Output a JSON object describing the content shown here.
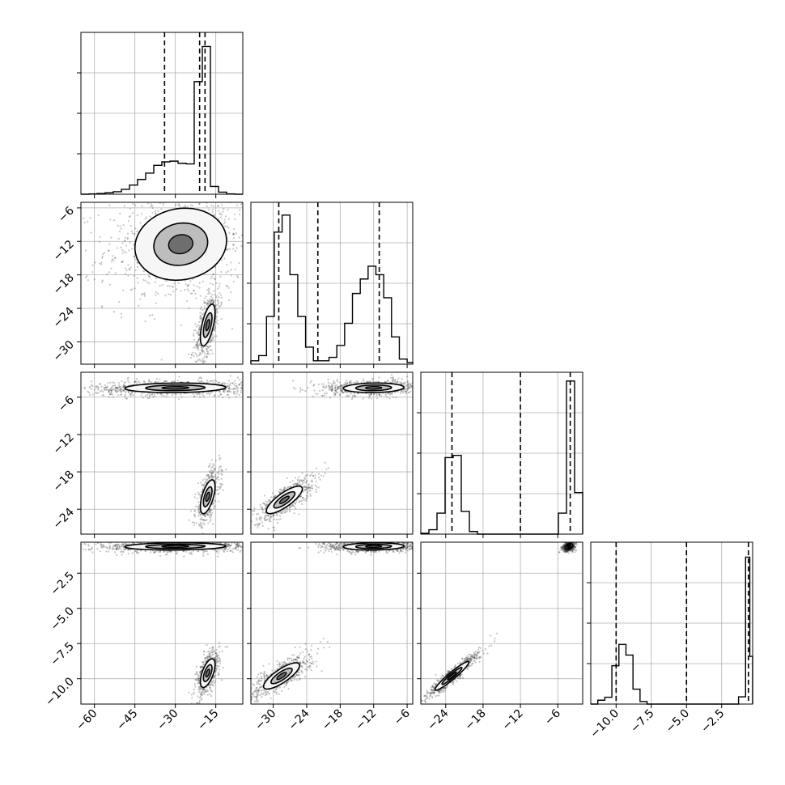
{
  "chart_data": {
    "type": "corner",
    "title": "",
    "grid": true,
    "parameters": [
      {
        "index": 0,
        "range": [
          -65,
          -5
        ],
        "ticks": [
          -60,
          -45,
          -30,
          -15
        ],
        "tick_labels": [
          "−60",
          "−45",
          "−30",
          "−15"
        ]
      },
      {
        "index": 1,
        "range": [
          -34,
          -5
        ],
        "ticks": [
          -30,
          -24,
          -18,
          -12,
          -6
        ],
        "tick_labels": [
          "−30",
          "−24",
          "−18",
          "−12",
          "−6"
        ]
      },
      {
        "index": 2,
        "range": [
          -28,
          -2
        ],
        "ticks": [
          -24,
          -18,
          -12,
          -6
        ],
        "tick_labels": [
          "−24",
          "−18",
          "−12",
          "−6"
        ]
      },
      {
        "index": 3,
        "range": [
          -11.8,
          -0.3
        ],
        "ticks": [
          -10.0,
          -7.5,
          -5.0,
          -2.5
        ],
        "tick_labels": [
          "−10.0",
          "−7.5",
          "−5.0",
          "−2.5"
        ]
      }
    ],
    "histograms": [
      {
        "param": 0,
        "ymax": 2300,
        "quantiles": [
          -34,
          -21,
          -19
        ],
        "bins": [
          {
            "x0": -65,
            "x1": -62,
            "y": 0
          },
          {
            "x0": -62,
            "x1": -59,
            "y": 5
          },
          {
            "x0": -59,
            "x1": -56,
            "y": 10
          },
          {
            "x0": -56,
            "x1": -53,
            "y": 20
          },
          {
            "x0": -53,
            "x1": -50,
            "y": 35
          },
          {
            "x0": -50,
            "x1": -47,
            "y": 70
          },
          {
            "x0": -47,
            "x1": -44,
            "y": 130
          },
          {
            "x0": -44,
            "x1": -41,
            "y": 210
          },
          {
            "x0": -41,
            "x1": -38,
            "y": 300
          },
          {
            "x0": -38,
            "x1": -35,
            "y": 410
          },
          {
            "x0": -35,
            "x1": -32,
            "y": 460
          },
          {
            "x0": -32,
            "x1": -29,
            "y": 470
          },
          {
            "x0": -29,
            "x1": -26,
            "y": 440
          },
          {
            "x0": -26,
            "x1": -23,
            "y": 430
          },
          {
            "x0": -23,
            "x1": -20,
            "y": 1600
          },
          {
            "x0": -20,
            "x1": -17,
            "y": 2100
          },
          {
            "x0": -17,
            "x1": -14,
            "y": 110
          },
          {
            "x0": -14,
            "x1": -11,
            "y": 30
          },
          {
            "x0": -11,
            "x1": -8,
            "y": 5
          },
          {
            "x0": -8,
            "x1": -5,
            "y": 0
          }
        ]
      },
      {
        "param": 1,
        "ymax": 1900,
        "quantiles": [
          -29,
          -22,
          -11
        ],
        "bins": [
          {
            "x0": -34,
            "x1": -32.6,
            "y": 40
          },
          {
            "x0": -32.6,
            "x1": -31.2,
            "y": 100
          },
          {
            "x0": -31.2,
            "x1": -29.8,
            "y": 560
          },
          {
            "x0": -29.8,
            "x1": -28.4,
            "y": 1550
          },
          {
            "x0": -28.4,
            "x1": -27.0,
            "y": 1750
          },
          {
            "x0": -27.0,
            "x1": -25.6,
            "y": 1050
          },
          {
            "x0": -25.6,
            "x1": -24.2,
            "y": 560
          },
          {
            "x0": -24.2,
            "x1": -22.8,
            "y": 200
          },
          {
            "x0": -22.8,
            "x1": -21.4,
            "y": 40
          },
          {
            "x0": -21.4,
            "x1": -20.0,
            "y": 40
          },
          {
            "x0": -20.0,
            "x1": -18.6,
            "y": 80
          },
          {
            "x0": -18.6,
            "x1": -17.2,
            "y": 220
          },
          {
            "x0": -17.2,
            "x1": -15.8,
            "y": 480
          },
          {
            "x0": -15.8,
            "x1": -14.4,
            "y": 830
          },
          {
            "x0": -14.4,
            "x1": -13.0,
            "y": 1000
          },
          {
            "x0": -13.0,
            "x1": -11.6,
            "y": 1150
          },
          {
            "x0": -11.6,
            "x1": -10.2,
            "y": 1050
          },
          {
            "x0": -10.2,
            "x1": -8.8,
            "y": 780
          },
          {
            "x0": -8.8,
            "x1": -7.4,
            "y": 320
          },
          {
            "x0": -7.4,
            "x1": -6.0,
            "y": 60
          },
          {
            "x0": -6.0,
            "x1": -5.0,
            "y": 20
          }
        ]
      },
      {
        "param": 2,
        "ymax": 3700,
        "quantiles": [
          -23,
          -12,
          -4
        ],
        "bins": [
          {
            "x0": -28,
            "x1": -26.7,
            "y": 20
          },
          {
            "x0": -26.7,
            "x1": -25.4,
            "y": 100
          },
          {
            "x0": -25.4,
            "x1": -24.1,
            "y": 480
          },
          {
            "x0": -24.1,
            "x1": -22.8,
            "y": 1750
          },
          {
            "x0": -22.8,
            "x1": -21.5,
            "y": 1800
          },
          {
            "x0": -21.5,
            "x1": -20.2,
            "y": 520
          },
          {
            "x0": -20.2,
            "x1": -18.9,
            "y": 60
          },
          {
            "x0": -18.9,
            "x1": -17.6,
            "y": 0
          },
          {
            "x0": -17.6,
            "x1": -5.9,
            "y": 0
          },
          {
            "x0": -5.9,
            "x1": -4.6,
            "y": 480
          },
          {
            "x0": -4.6,
            "x1": -3.3,
            "y": 3500
          },
          {
            "x0": -3.3,
            "x1": -2.0,
            "y": 950
          }
        ]
      },
      {
        "param": 3,
        "ymax": 3800,
        "quantiles": [
          -10.0,
          -5.0,
          -0.6
        ],
        "bins": [
          {
            "x0": -11.8,
            "x1": -11.3,
            "y": 0
          },
          {
            "x0": -11.3,
            "x1": -10.8,
            "y": 90
          },
          {
            "x0": -10.8,
            "x1": -10.3,
            "y": 160
          },
          {
            "x0": -10.3,
            "x1": -9.8,
            "y": 900
          },
          {
            "x0": -9.8,
            "x1": -9.3,
            "y": 1400
          },
          {
            "x0": -9.3,
            "x1": -8.8,
            "y": 1150
          },
          {
            "x0": -8.8,
            "x1": -8.3,
            "y": 350
          },
          {
            "x0": -8.3,
            "x1": -7.8,
            "y": 60
          },
          {
            "x0": -7.8,
            "x1": -1.3,
            "y": 0
          },
          {
            "x0": -1.3,
            "x1": -0.8,
            "y": 170
          },
          {
            "x0": -0.8,
            "x1": -0.5,
            "y": 3450
          },
          {
            "x0": -0.5,
            "x1": -0.3,
            "y": 1120
          }
        ]
      }
    ],
    "scatter_panels": [
      {
        "x": 0,
        "y": 1,
        "clusters": [
          {
            "cx": -28,
            "cy": -12.5,
            "sx": 10,
            "sy": 3.8,
            "rho": 0.1,
            "n": 900
          },
          {
            "cx": -18,
            "cy": -27,
            "sx": 1.6,
            "sy": 2.2,
            "rho": 0.6,
            "n": 520
          }
        ]
      },
      {
        "x": 0,
        "y": 2,
        "clusters": [
          {
            "cx": -30,
            "cy": -4.5,
            "sx": 11,
            "sy": 0.45,
            "rho": 0.1,
            "n": 900
          },
          {
            "cx": -18,
            "cy": -22,
            "sx": 1.6,
            "sy": 1.6,
            "rho": 0.6,
            "n": 520
          }
        ]
      },
      {
        "x": 0,
        "y": 3,
        "clusters": [
          {
            "cx": -30,
            "cy": -0.6,
            "sx": 11,
            "sy": 0.15,
            "rho": 0.1,
            "n": 900
          },
          {
            "cx": -18,
            "cy": -9.6,
            "sx": 1.6,
            "sy": 0.6,
            "rho": 0.6,
            "n": 520
          }
        ]
      },
      {
        "x": 1,
        "y": 2,
        "clusters": [
          {
            "cx": -12,
            "cy": -4.5,
            "sx": 3.2,
            "sy": 0.45,
            "rho": 0.1,
            "n": 800
          },
          {
            "cx": -28,
            "cy": -22.5,
            "sx": 1.9,
            "sy": 1.3,
            "rho": 0.8,
            "n": 600
          }
        ]
      },
      {
        "x": 1,
        "y": 3,
        "clusters": [
          {
            "cx": -12,
            "cy": -0.6,
            "sx": 3.2,
            "sy": 0.15,
            "rho": 0.1,
            "n": 800
          },
          {
            "cx": -28.5,
            "cy": -9.8,
            "sx": 1.9,
            "sy": 0.55,
            "rho": 0.8,
            "n": 600
          }
        ]
      },
      {
        "x": 2,
        "y": 3,
        "clusters": [
          {
            "cx": -4.2,
            "cy": -0.6,
            "sx": 0.35,
            "sy": 0.12,
            "rho": 0.3,
            "n": 600
          },
          {
            "cx": -23,
            "cy": -9.8,
            "sx": 1.6,
            "sy": 0.6,
            "rho": 0.95,
            "n": 600
          }
        ]
      }
    ],
    "colors": {
      "line": "#000000",
      "scatter": "#333333",
      "grid": "#b0b0b0",
      "contour_fill_1": "#f6f6f6",
      "contour_fill_2": "#bdbdbd",
      "contour_fill_3": "#6e6e6e"
    }
  }
}
